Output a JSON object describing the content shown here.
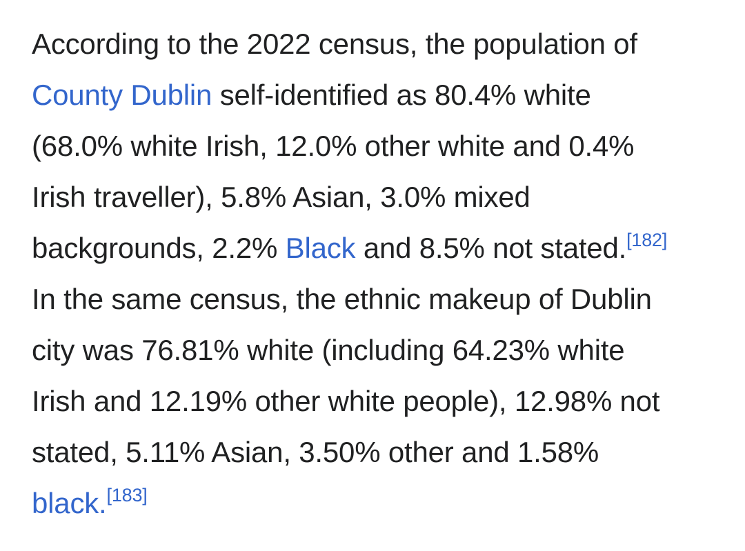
{
  "paragraph": {
    "line1": {
      "text": "According to the 2022 census, the population of"
    },
    "line2": {
      "link": "County Dublin",
      "text": " self-identified as 80.4% white"
    },
    "line3": {
      "text": "(68.0% white Irish, 12.0% other white and 0.4%"
    },
    "line4": {
      "text": "Irish traveller), 5.8% Asian, 3.0% mixed"
    },
    "line5": {
      "text_before": "backgrounds, 2.2% ",
      "link": "Black",
      "text_after": " and 8.5% not stated.",
      "ref": "[182]"
    },
    "line6": {
      "text": "In the same census, the ethnic makeup of Dublin"
    },
    "line7": {
      "text": "city was 76.81% white (including 64.23% white"
    },
    "line8": {
      "text": "Irish and 12.19% other white people), 12.98% not"
    },
    "line9": {
      "text": "stated, 5.11% Asian, 3.50% other and 1.58%"
    },
    "line10": {
      "link": "black.",
      "ref": "[183]"
    }
  },
  "colors": {
    "text": "#202122",
    "link": "#3366cc",
    "background": "#ffffff"
  }
}
